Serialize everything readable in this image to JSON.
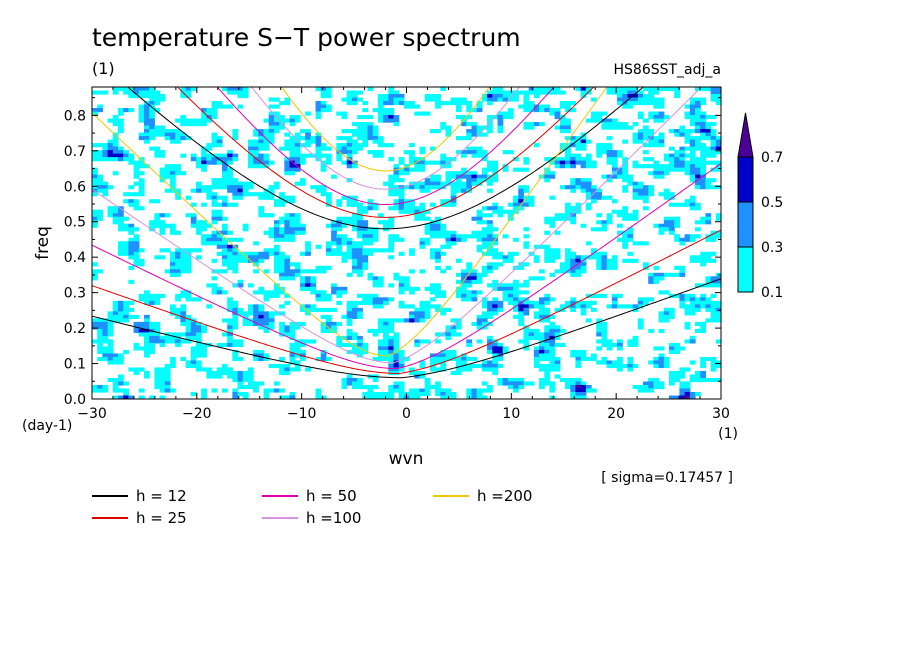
{
  "chart_data": {
    "type": "contour",
    "title": "temperature S−T power spectrum",
    "subtitle_left": "(1)",
    "subtitle_right": "HS86SST_adj_a",
    "xlabel": "wvn",
    "ylabel": "freq",
    "x_unit": "(1)",
    "y_unit": "(day-1)",
    "xlim": [
      -30,
      30
    ],
    "ylim": [
      0,
      0.88
    ],
    "x_ticks": [
      -30,
      -20,
      -10,
      0,
      10,
      20,
      30
    ],
    "x_tick_labels": [
      "−30",
      "−20",
      "−10",
      "0",
      "10",
      "20",
      "30"
    ],
    "y_ticks": [
      0.0,
      0.1,
      0.2,
      0.3,
      0.4,
      0.5,
      0.6,
      0.7,
      0.8
    ],
    "y_tick_labels": [
      "0.0",
      "0.1",
      "0.2",
      "0.3",
      "0.4",
      "0.5",
      "0.6",
      "0.7",
      "0.8"
    ],
    "sigma_label": "[ sigma=0.17457 ]",
    "colorbar": {
      "levels": [
        "0.1",
        "0.3",
        "0.5",
        "0.7"
      ],
      "colors": [
        "#00ffff",
        "#1e90ff",
        "#0000c8",
        "#4b0096"
      ]
    },
    "dispersion_curves": [
      {
        "name": "h = 12",
        "h": 12,
        "color": "#000000"
      },
      {
        "name": "h = 25",
        "h": 25,
        "color": "#e00000"
      },
      {
        "name": "h = 50",
        "h": 50,
        "color": "#e000b0"
      },
      {
        "name": "h =100",
        "h": 100,
        "color": "#d890e0"
      },
      {
        "name": "h =200",
        "h": 200,
        "color": "#f0c800"
      }
    ]
  }
}
